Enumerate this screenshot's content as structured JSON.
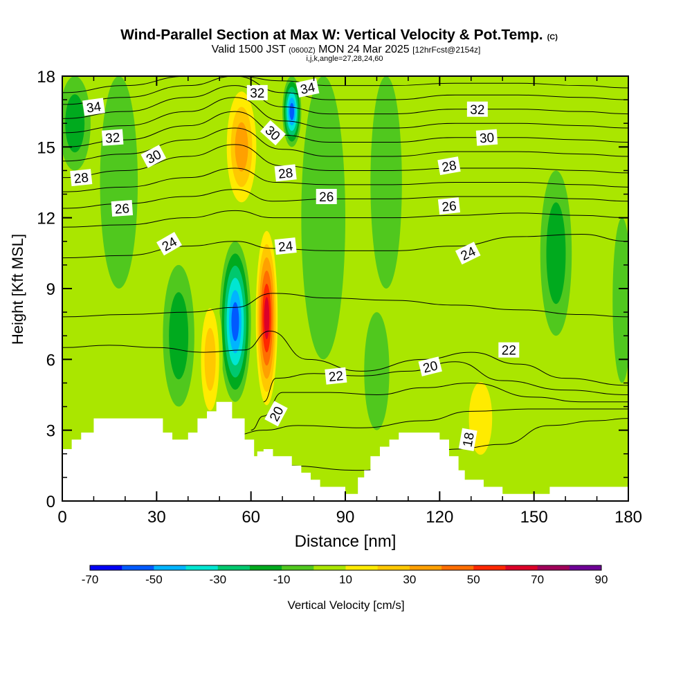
{
  "chart_data": {
    "type": "heatmap",
    "title": "Wind-Parallel Section at Max W: Vertical Velocity & Pot.Temp.",
    "title_mark": "(C)",
    "subtitle_main_a": "Valid 1500 JST",
    "subtitle_utc": "(0600Z)",
    "subtitle_main_b": "MON 24 Mar 2025",
    "subtitle_fcst": "[12hrFcst@2154z]",
    "subtitle_ijk": "i,j,k,angle=27,28,24,60",
    "xlabel": "Distance [nm]",
    "ylabel": "Height [Kft MSL]",
    "xlim": [
      0,
      180
    ],
    "ylim": [
      0,
      18
    ],
    "x_ticks": [
      "0",
      "30",
      "60",
      "90",
      "120",
      "150",
      "180"
    ],
    "y_ticks": [
      "0",
      "3",
      "6",
      "9",
      "12",
      "15",
      "18"
    ],
    "colorbar": {
      "label": "Vertical Velocity [cm/s]",
      "tick_labels": [
        "-70",
        "-50",
        "-30",
        "-10",
        "10",
        "30",
        "50",
        "70",
        "90"
      ],
      "levels": [
        -70,
        -60,
        -50,
        -40,
        -30,
        -20,
        -10,
        0,
        10,
        20,
        30,
        40,
        50,
        60,
        70,
        80,
        90
      ],
      "colors": [
        "#0000f5",
        "#005aff",
        "#00b4ff",
        "#00e6d2",
        "#00c86e",
        "#00aa1e",
        "#50c81e",
        "#aae600",
        "#ffeb00",
        "#ffc800",
        "#ffa000",
        "#ff6e00",
        "#ff2800",
        "#dc0028",
        "#a0005a",
        "#6e0096"
      ]
    },
    "background_color": "#aae600",
    "terrain_color": "#ffffff",
    "velocity_features": [
      {
        "x": 55,
        "y_bottom": 4.2,
        "y_top": 11,
        "half_width": 5,
        "value": -65
      },
      {
        "x": 73,
        "y_bottom": 15,
        "y_top": 18,
        "half_width": 3,
        "value": -60
      },
      {
        "x": 65,
        "y_bottom": 3.5,
        "y_top": 12,
        "half_width": 4,
        "value": 75
      },
      {
        "x": 57,
        "y_bottom": 12,
        "y_top": 18,
        "half_width": 6,
        "value": 45
      },
      {
        "x": 47,
        "y_bottom": 3,
        "y_top": 9,
        "half_width": 4,
        "value": 35
      },
      {
        "x": 27,
        "y_bottom": 15,
        "y_top": 18,
        "half_width": 4,
        "value": 15
      },
      {
        "x": 120,
        "y_bottom": 0.6,
        "y_top": 3.5,
        "half_width": 15,
        "value": 18
      },
      {
        "x": 133,
        "y_bottom": 1,
        "y_top": 6,
        "half_width": 6,
        "value": 22
      },
      {
        "x": 18,
        "y_bottom": 9,
        "y_top": 18,
        "half_width": 6,
        "value": -15
      },
      {
        "x": 4,
        "y_bottom": 14,
        "y_top": 18,
        "half_width": 5,
        "value": -25
      },
      {
        "x": 37,
        "y_bottom": 4,
        "y_top": 10,
        "half_width": 5,
        "value": -20
      },
      {
        "x": 83,
        "y_bottom": 6,
        "y_top": 18,
        "half_width": 7,
        "value": -12
      },
      {
        "x": 103,
        "y_bottom": 9,
        "y_top": 18,
        "half_width": 5,
        "value": -12
      },
      {
        "x": 157,
        "y_bottom": 7,
        "y_top": 14,
        "half_width": 5,
        "value": -25
      },
      {
        "x": 178,
        "y_bottom": 5,
        "y_top": 12,
        "half_width": 3,
        "value": -15
      },
      {
        "x": 2,
        "y_bottom": 2.5,
        "y_top": 6,
        "half_width": 3,
        "value": 12
      },
      {
        "x": 100,
        "y_bottom": 3,
        "y_top": 8,
        "half_width": 4,
        "value": -10
      },
      {
        "x": 167,
        "y_bottom": 0.7,
        "y_top": 4,
        "half_width": 8,
        "value": 8
      }
    ],
    "terrain": {
      "x": [
        0,
        3,
        3,
        6,
        6,
        10,
        10,
        32,
        32,
        35,
        35,
        40,
        40,
        43,
        43,
        46,
        46,
        49,
        49,
        54,
        54,
        58,
        58,
        61,
        61,
        62,
        62,
        64,
        64,
        67,
        67,
        73,
        73,
        76,
        76,
        79,
        79,
        82,
        82,
        86,
        86,
        90,
        90,
        91,
        91,
        94,
        94,
        96,
        96,
        98,
        98,
        101,
        101,
        104,
        104,
        107,
        107,
        120,
        120,
        123,
        123,
        126,
        126,
        128,
        128,
        134,
        134,
        140,
        140,
        143,
        143,
        149,
        149,
        155,
        155,
        158,
        158,
        180
      ],
      "height": [
        2.2,
        2.2,
        2.6,
        2.6,
        2.9,
        2.9,
        3.5,
        3.5,
        2.9,
        2.9,
        2.6,
        2.6,
        2.9,
        2.9,
        3.5,
        3.5,
        3.8,
        3.8,
        4.2,
        4.2,
        3.5,
        3.5,
        2.6,
        2.6,
        1.9,
        1.9,
        2.1,
        2.1,
        2.2,
        2.2,
        1.9,
        1.9,
        1.5,
        1.5,
        1.2,
        1.2,
        0.9,
        0.9,
        0.6,
        0.6,
        0.6,
        0.6,
        0.3,
        0.3,
        0.3,
        0.3,
        1.0,
        1.0,
        1.3,
        1.3,
        1.9,
        1.9,
        2.3,
        2.3,
        2.6,
        2.6,
        2.9,
        2.9,
        2.6,
        2.6,
        1.9,
        1.9,
        1.3,
        1.3,
        0.9,
        0.9,
        0.6,
        0.6,
        0.3,
        0.3,
        0.3,
        0.3,
        0.3,
        0.3,
        0.6,
        0.6,
        0.6,
        0.6
      ]
    },
    "isentropes": [
      {
        "theta": 18,
        "x": [
          0,
          20,
          40,
          55,
          70,
          95,
          110,
          125,
          140,
          155,
          170,
          180
        ],
        "y": [
          1.0,
          1.2,
          1.5,
          1.8,
          1.5,
          1.3,
          1.6,
          2.2,
          2.4,
          3.2,
          3.4,
          3.5
        ]
      },
      {
        "theta": 19,
        "x": [
          40,
          55,
          64,
          75,
          95,
          115,
          130,
          150,
          180
        ],
        "y": [
          2.4,
          2.8,
          3.0,
          3.2,
          3.1,
          3.4,
          3.8,
          3.9,
          3.9
        ]
      },
      {
        "theta": 20,
        "x": [
          60,
          64,
          70,
          85,
          100,
          115,
          130,
          150,
          165,
          180
        ],
        "y": [
          3.0,
          3.6,
          4.6,
          4.6,
          4.5,
          4.8,
          5.0,
          4.4,
          4.2,
          4.2
        ]
      },
      {
        "theta": 21,
        "x": [
          64,
          68,
          80,
          95,
          110,
          125,
          140,
          160,
          180
        ],
        "y": [
          4.2,
          5.2,
          5.4,
          5.3,
          5.5,
          5.9,
          5.1,
          4.7,
          4.5
        ]
      },
      {
        "theta": 22,
        "x": [
          0,
          15,
          30,
          45,
          58,
          66,
          78,
          95,
          115,
          130,
          145,
          160,
          180
        ],
        "y": [
          6.5,
          6.6,
          6.5,
          6.3,
          6.4,
          7.2,
          6.0,
          5.5,
          6.0,
          6.3,
          5.8,
          5.2,
          4.9
        ]
      },
      {
        "theta": 23,
        "x": [
          0,
          20,
          40,
          55,
          67,
          85,
          105,
          125,
          145,
          165,
          180
        ],
        "y": [
          7.8,
          7.9,
          8.0,
          8.2,
          8.8,
          8.6,
          8.5,
          8.3,
          8.1,
          7.9,
          7.8
        ]
      },
      {
        "theta": 24,
        "x": [
          0,
          20,
          40,
          55,
          67,
          85,
          105,
          125,
          145,
          165,
          180
        ],
        "y": [
          10.3,
          10.4,
          10.8,
          11.0,
          10.7,
          10.6,
          10.6,
          10.8,
          11.2,
          11.3,
          11.0
        ]
      },
      {
        "theta": 25,
        "x": [
          0,
          20,
          40,
          55,
          67,
          85,
          105,
          125,
          145,
          165,
          180
        ],
        "y": [
          11.6,
          11.7,
          12.0,
          12.3,
          12.0,
          12.0,
          12.0,
          12.1,
          12.2,
          12.1,
          12.0
        ]
      },
      {
        "theta": 26,
        "x": [
          0,
          20,
          40,
          55,
          67,
          85,
          105,
          125,
          145,
          165,
          180
        ],
        "y": [
          12.4,
          12.6,
          12.9,
          13.2,
          12.7,
          12.8,
          12.8,
          12.9,
          12.9,
          12.8,
          12.7
        ]
      },
      {
        "theta": 27,
        "x": [
          0,
          20,
          40,
          55,
          68,
          85,
          105,
          125,
          145,
          165,
          180
        ],
        "y": [
          13.1,
          13.3,
          13.7,
          14.1,
          13.5,
          13.4,
          13.4,
          13.5,
          13.5,
          13.4,
          13.3
        ]
      },
      {
        "theta": 28,
        "x": [
          0,
          20,
          40,
          55,
          70,
          85,
          105,
          125,
          145,
          165,
          180
        ],
        "y": [
          13.7,
          14.0,
          14.6,
          15.1,
          14.2,
          14.0,
          14.0,
          14.1,
          14.1,
          14.0,
          13.9
        ]
      },
      {
        "theta": 29,
        "x": [
          0,
          20,
          40,
          55,
          70,
          85,
          105,
          125,
          145,
          165,
          180
        ],
        "y": [
          14.4,
          14.7,
          15.3,
          15.8,
          14.9,
          14.6,
          14.6,
          14.8,
          14.8,
          14.7,
          14.6
        ]
      },
      {
        "theta": 30,
        "x": [
          0,
          20,
          40,
          55,
          70,
          85,
          105,
          125,
          145,
          165,
          180
        ],
        "y": [
          15.0,
          15.3,
          15.9,
          16.5,
          15.5,
          15.2,
          15.2,
          15.4,
          15.4,
          15.3,
          15.2
        ]
      },
      {
        "theta": 31,
        "x": [
          0,
          20,
          40,
          55,
          70,
          85,
          105,
          125,
          145,
          165,
          180
        ],
        "y": [
          15.6,
          15.9,
          16.5,
          17.1,
          16.1,
          15.8,
          15.8,
          16.0,
          16.0,
          15.9,
          15.8
        ]
      },
      {
        "theta": 32,
        "x": [
          0,
          20,
          40,
          55,
          70,
          85,
          105,
          125,
          145,
          165,
          180
        ],
        "y": [
          16.2,
          16.5,
          17.1,
          17.6,
          16.7,
          16.4,
          16.4,
          16.6,
          16.6,
          16.5,
          16.4
        ]
      },
      {
        "theta": 33,
        "x": [
          0,
          20,
          40,
          55,
          70,
          85,
          105,
          125,
          145,
          165,
          180
        ],
        "y": [
          16.8,
          17.1,
          17.6,
          18.0,
          17.3,
          17.0,
          17.0,
          17.2,
          17.2,
          17.1,
          17.0
        ]
      },
      {
        "theta": 34,
        "x": [
          0,
          20,
          40,
          55,
          70,
          85,
          105,
          125,
          145,
          165,
          180
        ],
        "y": [
          17.3,
          17.6,
          18.0,
          18.0,
          17.8,
          17.6,
          17.6,
          17.7,
          17.7,
          17.6,
          17.5
        ]
      }
    ],
    "contour_labels": [
      {
        "text": "34",
        "x": 10,
        "y": 16.7,
        "angle": -8
      },
      {
        "text": "32",
        "x": 16,
        "y": 15.4,
        "angle": -4
      },
      {
        "text": "30",
        "x": 29,
        "y": 14.6,
        "angle": -28
      },
      {
        "text": "28",
        "x": 6,
        "y": 13.7,
        "angle": -6
      },
      {
        "text": "26",
        "x": 19,
        "y": 12.4,
        "angle": -4
      },
      {
        "text": "24",
        "x": 34,
        "y": 10.9,
        "angle": -30
      },
      {
        "text": "32",
        "x": 62,
        "y": 17.3,
        "angle": 0
      },
      {
        "text": "34",
        "x": 78,
        "y": 17.5,
        "angle": -12
      },
      {
        "text": "30",
        "x": 67,
        "y": 15.6,
        "angle": 42
      },
      {
        "text": "28",
        "x": 71,
        "y": 13.9,
        "angle": -6
      },
      {
        "text": "26",
        "x": 84,
        "y": 12.9,
        "angle": 0
      },
      {
        "text": "24",
        "x": 71,
        "y": 10.8,
        "angle": -6
      },
      {
        "text": "32",
        "x": 132,
        "y": 16.6,
        "angle": 0
      },
      {
        "text": "30",
        "x": 135,
        "y": 15.4,
        "angle": -4
      },
      {
        "text": "28",
        "x": 123,
        "y": 14.2,
        "angle": -10
      },
      {
        "text": "26",
        "x": 123,
        "y": 12.5,
        "angle": -6
      },
      {
        "text": "24",
        "x": 129,
        "y": 10.5,
        "angle": -26
      },
      {
        "text": "22",
        "x": 87,
        "y": 5.3,
        "angle": -6
      },
      {
        "text": "20",
        "x": 117,
        "y": 5.7,
        "angle": -14
      },
      {
        "text": "22",
        "x": 142,
        "y": 6.4,
        "angle": 0
      },
      {
        "text": "20",
        "x": 68,
        "y": 3.7,
        "angle": -62
      },
      {
        "text": "18",
        "x": 129,
        "y": 2.6,
        "angle": -80
      }
    ]
  }
}
